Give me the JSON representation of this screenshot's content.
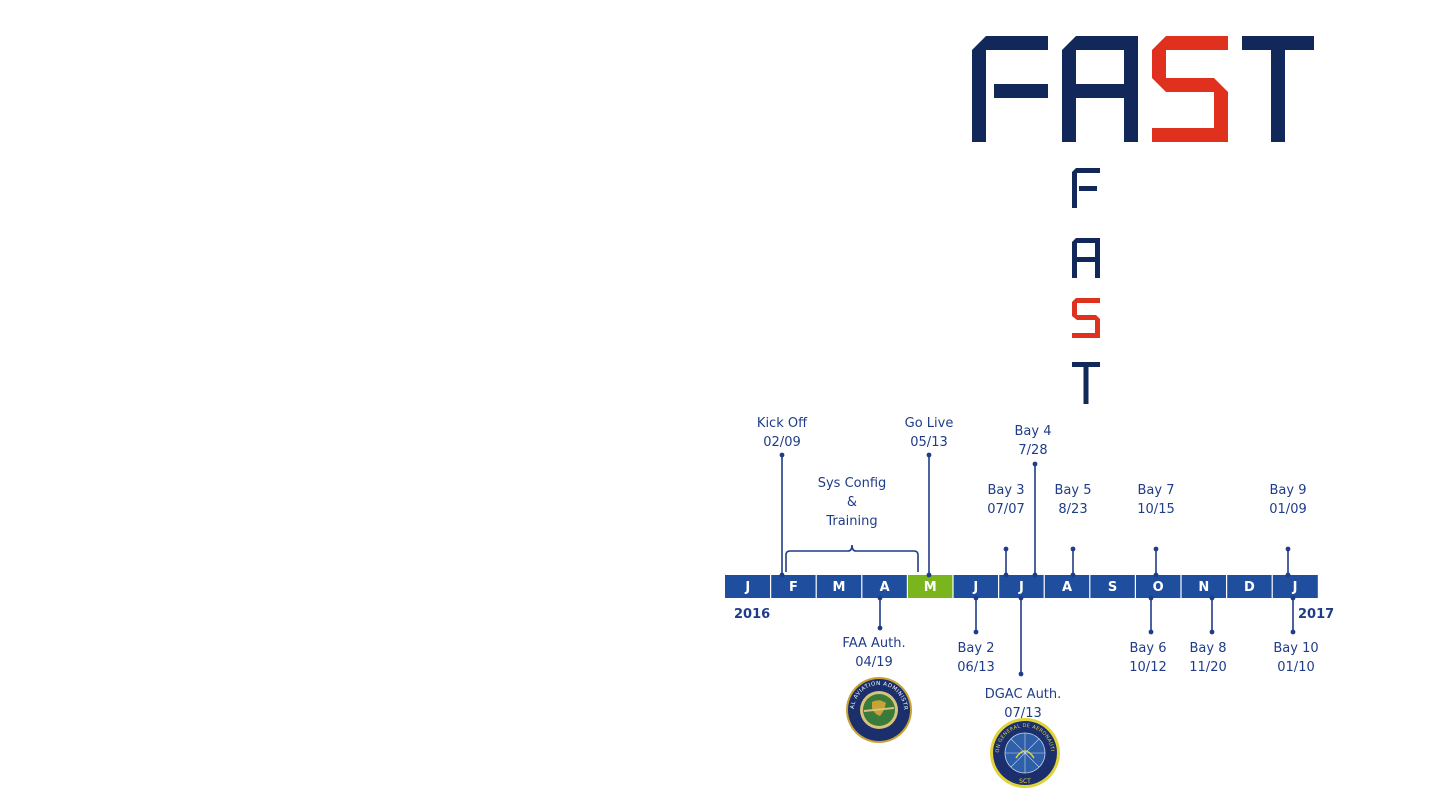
{
  "logo": {
    "text": "FAST"
  },
  "vertical_word": [
    "F",
    "A",
    "S",
    "T"
  ],
  "colors": {
    "navy": "#13285a",
    "red": "#e0301e",
    "bar": "#1f4e9e",
    "highlight": "#7ab51d",
    "text": "#1f3c88"
  },
  "timeline": {
    "months": [
      "J",
      "F",
      "M",
      "A",
      "M",
      "J",
      "J",
      "A",
      "S",
      "O",
      "N",
      "D",
      "J"
    ],
    "highlight_index": 4,
    "year_start": "2016",
    "year_end": "2017",
    "span_label": [
      "Sys Config",
      "&",
      "Training"
    ],
    "events_above": [
      {
        "lines": [
          "Kick Off",
          "02/09"
        ]
      },
      {
        "lines": [
          "Go Live",
          "05/13"
        ]
      },
      {
        "lines": [
          "Bay 3",
          "07/07"
        ]
      },
      {
        "lines": [
          "Bay 4",
          "7/28"
        ]
      },
      {
        "lines": [
          "Bay 5",
          "8/23"
        ]
      },
      {
        "lines": [
          "Bay 7",
          "10/15"
        ]
      },
      {
        "lines": [
          "Bay 9",
          "01/09"
        ]
      }
    ],
    "events_below": [
      {
        "lines": [
          "FAA Auth.",
          "04/19"
        ]
      },
      {
        "lines": [
          "Bay 2",
          "06/13"
        ]
      },
      {
        "lines": [
          "DGAC Auth.",
          "07/13"
        ]
      },
      {
        "lines": [
          "Bay 6",
          "10/12"
        ]
      },
      {
        "lines": [
          "Bay 8",
          "11/20"
        ]
      },
      {
        "lines": [
          "Bay 10",
          "01/10"
        ]
      }
    ]
  },
  "seals": [
    {
      "name": "faa-seal",
      "text": "FEDERAL AVIATION ADMINISTRATION"
    },
    {
      "name": "dgac-seal",
      "text": "DIRECCION GENERAL DE AERONAUTICA CIVIL"
    }
  ]
}
